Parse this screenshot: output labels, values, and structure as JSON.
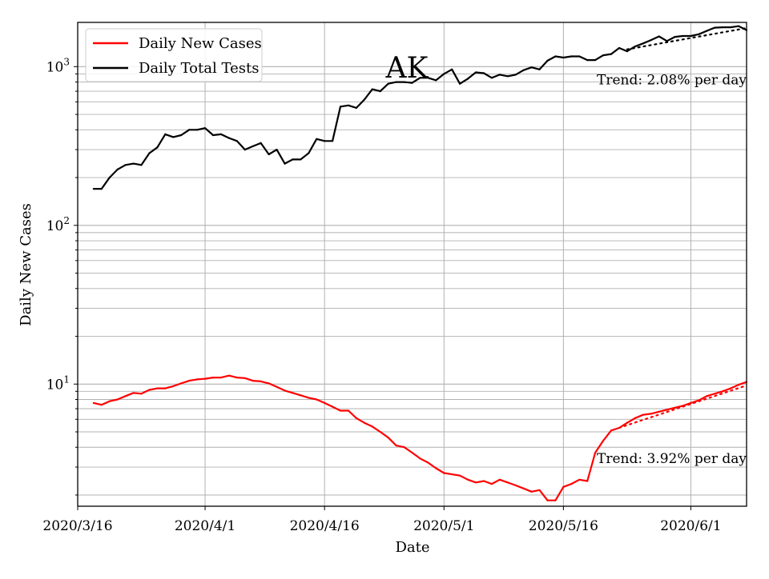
{
  "chart_data": {
    "type": "line",
    "title": "AK",
    "xlabel": "Date",
    "ylabel": "Daily New Cases",
    "yscale": "log",
    "ylim": [
      1.7,
      1900
    ],
    "xlim": [
      "2020-03-16",
      "2020-06-08"
    ],
    "grid": true,
    "legend_position": "top-left",
    "xticks": [
      {
        "date": "2020-03-16",
        "label": "2020/3/16"
      },
      {
        "date": "2020-04-01",
        "label": "2020/4/1"
      },
      {
        "date": "2020-04-16",
        "label": "2020/4/16"
      },
      {
        "date": "2020-05-01",
        "label": "2020/5/1"
      },
      {
        "date": "2020-05-16",
        "label": "2020/5/16"
      },
      {
        "date": "2020-06-01",
        "label": "2020/6/1"
      }
    ],
    "yticks": [
      {
        "value": 10,
        "base": "10",
        "exp": "1"
      },
      {
        "value": 100,
        "base": "10",
        "exp": "2"
      },
      {
        "value": 1000,
        "base": "10",
        "exp": "3"
      }
    ],
    "series": [
      {
        "name": "Daily New Cases",
        "color": "#ff0000",
        "x": [
          "2020-03-18",
          "2020-03-19",
          "2020-03-20",
          "2020-03-21",
          "2020-03-22",
          "2020-03-23",
          "2020-03-24",
          "2020-03-25",
          "2020-03-26",
          "2020-03-27",
          "2020-03-28",
          "2020-03-29",
          "2020-03-30",
          "2020-03-31",
          "2020-04-01",
          "2020-04-02",
          "2020-04-03",
          "2020-04-04",
          "2020-04-05",
          "2020-04-06",
          "2020-04-07",
          "2020-04-08",
          "2020-04-09",
          "2020-04-10",
          "2020-04-11",
          "2020-04-12",
          "2020-04-13",
          "2020-04-14",
          "2020-04-15",
          "2020-04-16",
          "2020-04-17",
          "2020-04-18",
          "2020-04-19",
          "2020-04-20",
          "2020-04-21",
          "2020-04-22",
          "2020-04-23",
          "2020-04-24",
          "2020-04-25",
          "2020-04-26",
          "2020-04-27",
          "2020-04-28",
          "2020-04-29",
          "2020-04-30",
          "2020-05-01",
          "2020-05-02",
          "2020-05-03",
          "2020-05-04",
          "2020-05-05",
          "2020-05-06",
          "2020-05-07",
          "2020-05-08",
          "2020-05-09",
          "2020-05-10",
          "2020-05-11",
          "2020-05-12",
          "2020-05-13",
          "2020-05-14",
          "2020-05-15",
          "2020-05-16",
          "2020-05-17",
          "2020-05-18",
          "2020-05-19",
          "2020-05-20",
          "2020-05-21",
          "2020-05-22",
          "2020-05-23",
          "2020-05-24",
          "2020-05-25",
          "2020-05-26",
          "2020-05-27",
          "2020-05-28",
          "2020-05-29",
          "2020-05-30",
          "2020-05-31",
          "2020-06-01",
          "2020-06-02",
          "2020-06-03",
          "2020-06-04",
          "2020-06-05",
          "2020-06-06",
          "2020-06-07",
          "2020-06-08"
        ],
        "y": [
          7.6,
          7.4,
          7.8,
          8.0,
          8.4,
          8.8,
          8.7,
          9.2,
          9.4,
          9.4,
          9.7,
          10.1,
          10.5,
          10.7,
          10.8,
          11.0,
          11.0,
          11.3,
          11.0,
          10.9,
          10.5,
          10.4,
          10.1,
          9.6,
          9.1,
          8.8,
          8.5,
          8.2,
          8.0,
          7.6,
          7.2,
          6.8,
          6.8,
          6.1,
          5.7,
          5.4,
          5.0,
          4.6,
          4.1,
          4.0,
          3.7,
          3.4,
          3.2,
          2.95,
          2.75,
          2.7,
          2.65,
          2.5,
          2.4,
          2.45,
          2.35,
          2.5,
          2.4,
          2.3,
          2.2,
          2.1,
          2.15,
          1.85,
          1.85,
          2.25,
          2.35,
          2.5,
          2.45,
          3.7,
          4.4,
          5.1,
          5.3,
          5.7,
          6.1,
          6.4,
          6.5,
          6.7,
          6.9,
          7.1,
          7.3,
          7.6,
          7.9,
          8.4,
          8.7,
          9.0,
          9.4,
          9.9,
          10.3
        ]
      },
      {
        "name": "Daily Total Tests",
        "color": "#000000",
        "x": [
          "2020-03-18",
          "2020-03-19",
          "2020-03-20",
          "2020-03-21",
          "2020-03-22",
          "2020-03-23",
          "2020-03-24",
          "2020-03-25",
          "2020-03-26",
          "2020-03-27",
          "2020-03-28",
          "2020-03-29",
          "2020-03-30",
          "2020-03-31",
          "2020-04-01",
          "2020-04-02",
          "2020-04-03",
          "2020-04-04",
          "2020-04-05",
          "2020-04-06",
          "2020-04-07",
          "2020-04-08",
          "2020-04-09",
          "2020-04-10",
          "2020-04-11",
          "2020-04-12",
          "2020-04-13",
          "2020-04-14",
          "2020-04-15",
          "2020-04-16",
          "2020-04-17",
          "2020-04-18",
          "2020-04-19",
          "2020-04-20",
          "2020-04-21",
          "2020-04-22",
          "2020-04-23",
          "2020-04-24",
          "2020-04-25",
          "2020-04-26",
          "2020-04-27",
          "2020-04-28",
          "2020-04-29",
          "2020-04-30",
          "2020-05-01",
          "2020-05-02",
          "2020-05-03",
          "2020-05-04",
          "2020-05-05",
          "2020-05-06",
          "2020-05-07",
          "2020-05-08",
          "2020-05-09",
          "2020-05-10",
          "2020-05-11",
          "2020-05-12",
          "2020-05-13",
          "2020-05-14",
          "2020-05-15",
          "2020-05-16",
          "2020-05-17",
          "2020-05-18",
          "2020-05-19",
          "2020-05-20",
          "2020-05-21",
          "2020-05-22",
          "2020-05-23",
          "2020-05-24",
          "2020-05-25",
          "2020-05-26",
          "2020-05-27",
          "2020-05-28",
          "2020-05-29",
          "2020-05-30",
          "2020-05-31",
          "2020-06-01",
          "2020-06-02",
          "2020-06-03",
          "2020-06-04",
          "2020-06-05",
          "2020-06-06",
          "2020-06-07",
          "2020-06-08"
        ],
        "y": [
          170,
          170,
          200,
          225,
          240,
          245,
          240,
          285,
          310,
          375,
          360,
          370,
          400,
          400,
          410,
          370,
          375,
          355,
          340,
          300,
          315,
          330,
          280,
          300,
          245,
          260,
          260,
          285,
          350,
          340,
          340,
          560,
          570,
          550,
          620,
          720,
          700,
          780,
          800,
          800,
          790,
          850,
          850,
          820,
          900,
          960,
          780,
          840,
          920,
          910,
          850,
          890,
          870,
          890,
          950,
          990,
          960,
          1090,
          1160,
          1140,
          1160,
          1160,
          1100,
          1100,
          1180,
          1200,
          1310,
          1250,
          1340,
          1400,
          1470,
          1550,
          1450,
          1540,
          1560,
          1560,
          1600,
          1680,
          1760,
          1770,
          1770,
          1800,
          1700
        ]
      }
    ],
    "trendlines": [
      {
        "series": "Daily Total Tests",
        "label": "Trend: 2.08% per day",
        "rate": 0.0208,
        "x_start": "2020-05-24",
        "y_start": 1285,
        "x_end": "2020-06-08",
        "style": "dotted"
      },
      {
        "series": "Daily New Cases",
        "label": "Trend: 3.92% per day",
        "rate": 0.0392,
        "x_start": "2020-05-23",
        "y_start": 5.3,
        "x_end": "2020-06-08",
        "style": "dotted"
      }
    ]
  }
}
